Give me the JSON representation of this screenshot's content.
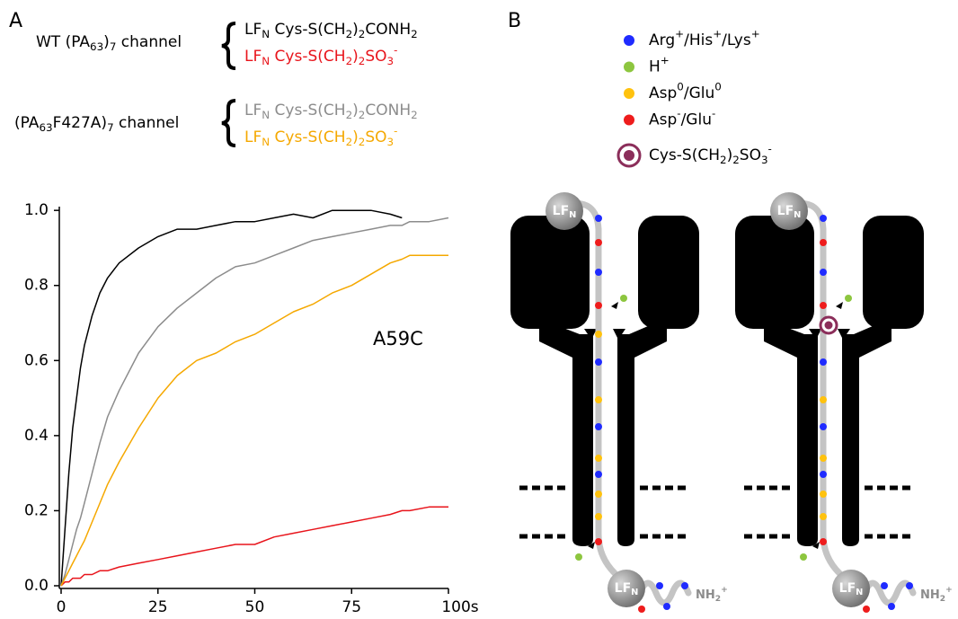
{
  "panel_labels": [
    "A",
    "B"
  ],
  "chart_data": {
    "type": "line",
    "legend_groups": [
      "WT (PA63)7 channel",
      "(PA63F427A)7 channel"
    ],
    "annotation": "A59C",
    "x": [
      0,
      1,
      2,
      3,
      4,
      5,
      6,
      8,
      10,
      12,
      15,
      20,
      25,
      30,
      35,
      40,
      45,
      50,
      55,
      60,
      65,
      70,
      75,
      80,
      85,
      88,
      90,
      95,
      100
    ],
    "series": [
      {
        "name": "LFN Cys-S(CH2)2CONH2",
        "color": "#000000",
        "values": [
          0,
          0.15,
          0.3,
          0.42,
          0.5,
          0.58,
          0.64,
          0.72,
          0.78,
          0.82,
          0.86,
          0.9,
          0.93,
          0.95,
          0.95,
          0.96,
          0.97,
          0.97,
          0.98,
          0.99,
          0.98,
          1.0,
          1.0,
          1.0,
          0.99,
          0.98,
          null,
          null,
          null
        ]
      },
      {
        "name": "LFN Cys-S(CH2)2SO3-",
        "color": "#e8141b",
        "values": [
          0,
          0.01,
          0.01,
          0.02,
          0.02,
          0.02,
          0.03,
          0.03,
          0.04,
          0.04,
          0.05,
          0.06,
          0.07,
          0.08,
          0.09,
          0.1,
          0.11,
          0.11,
          0.13,
          0.14,
          0.15,
          0.16,
          0.17,
          0.18,
          0.19,
          0.2,
          0.2,
          0.21,
          0.21
        ]
      },
      {
        "name": "LFN Cys-S(CH2)2CONH2",
        "color": "#8c8c8c",
        "values": [
          0,
          0.03,
          0.07,
          0.11,
          0.15,
          0.18,
          0.22,
          0.3,
          0.38,
          0.45,
          0.52,
          0.62,
          0.69,
          0.74,
          0.78,
          0.82,
          0.85,
          0.86,
          0.88,
          0.9,
          0.92,
          0.93,
          0.94,
          0.95,
          0.96,
          0.96,
          0.97,
          0.97,
          0.98
        ]
      },
      {
        "name": "LFN Cys-S(CH2)2SO3-",
        "color": "#f5a800",
        "values": [
          0,
          0.02,
          0.04,
          0.06,
          0.08,
          0.1,
          0.12,
          0.17,
          0.22,
          0.27,
          0.33,
          0.42,
          0.5,
          0.56,
          0.6,
          0.62,
          0.65,
          0.67,
          0.7,
          0.73,
          0.75,
          0.78,
          0.8,
          0.83,
          0.86,
          0.87,
          0.88,
          0.88,
          0.88
        ]
      }
    ],
    "xlim": [
      0,
      100
    ],
    "ylim": [
      0,
      1.01
    ],
    "xticks": [
      0,
      25,
      50,
      75,
      {
        "value": 100,
        "label": "100s"
      }
    ],
    "yticks": [
      {
        "value": 0,
        "label": "0.0"
      },
      0.2,
      0.4,
      0.6,
      0.8,
      {
        "value": 1,
        "label": "1.0"
      }
    ]
  },
  "diagram": {
    "legend": [
      {
        "label": "Arg+/His+/Lys+",
        "color": "#1f2bff"
      },
      {
        "label": "H+",
        "color": "#8dc63f"
      },
      {
        "label": "Asp0/Glu0",
        "color": "#ffc20e"
      },
      {
        "label": "Asp-/Glu-",
        "color": "#ee1c1c"
      },
      {
        "label": "Cys-S(CH2)2SO3-",
        "color": "#8b2e5a"
      }
    ],
    "lf_label": "LFN",
    "nh2_label": "NH2+"
  }
}
